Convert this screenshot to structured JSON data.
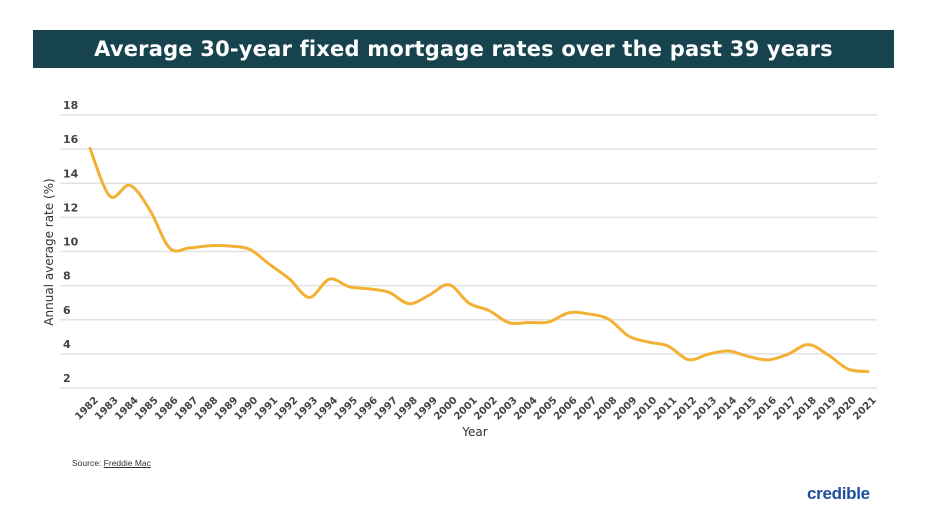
{
  "chart_data": {
    "type": "line",
    "title": "Average 30-year fixed mortgage rates over the past 39 years",
    "xlabel": "Year",
    "ylabel": "Annual average rate (%)",
    "ylim": [
      2,
      18
    ],
    "yticks": [
      2,
      4,
      6,
      8,
      10,
      12,
      14,
      16,
      18
    ],
    "grid": true,
    "line_color": "#f2b134",
    "x": [
      "1982",
      "1983",
      "1984",
      "1985",
      "1986",
      "1987",
      "1988",
      "1989",
      "1990",
      "1991",
      "1992",
      "1993",
      "1994",
      "1995",
      "1996",
      "1997",
      "1998",
      "1999",
      "2000",
      "2001",
      "2002",
      "2003",
      "2004",
      "2005",
      "2006",
      "2007",
      "2008",
      "2009",
      "2010",
      "2011",
      "2012",
      "2013",
      "2014",
      "2015",
      "2016",
      "2017",
      "2018",
      "2019",
      "2020",
      "2021"
    ],
    "values": [
      16.04,
      13.24,
      13.88,
      12.43,
      10.19,
      10.21,
      10.34,
      10.32,
      10.13,
      9.25,
      8.39,
      7.31,
      8.38,
      7.93,
      7.81,
      7.6,
      6.94,
      7.44,
      8.05,
      6.97,
      6.54,
      5.83,
      5.84,
      5.87,
      6.41,
      6.34,
      6.03,
      5.04,
      4.69,
      4.45,
      3.66,
      3.98,
      4.17,
      3.85,
      3.65,
      3.99,
      4.54,
      3.94,
      3.11,
      2.96
    ]
  },
  "source": {
    "label": "Source:",
    "link": "Freddie Mac"
  },
  "logo": {
    "text": "credible"
  },
  "colors": {
    "title_bar": "#17434f",
    "line": "#f2b134",
    "logo": "#1e4f9c"
  }
}
